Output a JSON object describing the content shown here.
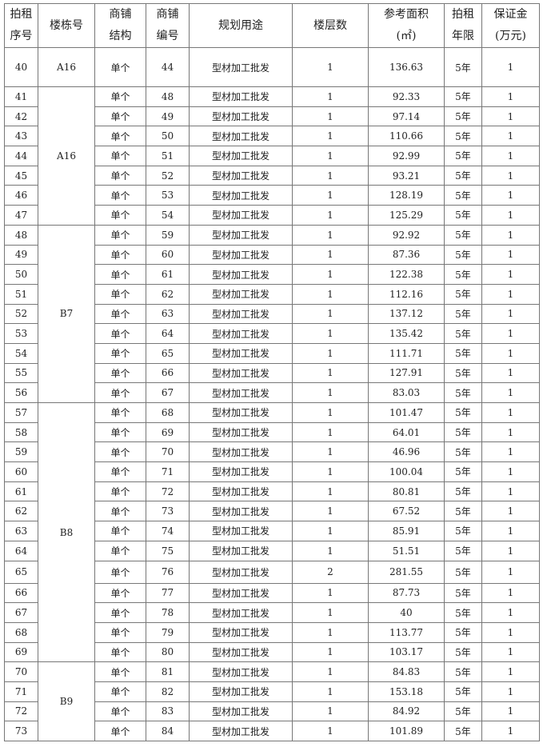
{
  "headers": [
    "拍租\n序号",
    "楼栋号",
    "商铺\n结构",
    "商铺\n编号",
    "规划用途",
    "楼层数",
    "参考面积\n(㎡)",
    "拍租\n年限",
    "保证金\n(万元)"
  ],
  "groups": [
    {
      "building": "A16",
      "rows": [
        [
          "40",
          "单个",
          "44",
          "型材加工批发",
          "1",
          "136.63",
          "5年",
          "1"
        ]
      ]
    },
    {
      "building": "A16",
      "rows": [
        [
          "41",
          "单个",
          "48",
          "型材加工批发",
          "1",
          "92.33",
          "5年",
          "1"
        ],
        [
          "42",
          "单个",
          "49",
          "型材加工批发",
          "1",
          "97.14",
          "5年",
          "1"
        ],
        [
          "43",
          "单个",
          "50",
          "型材加工批发",
          "1",
          "110.66",
          "5年",
          "1"
        ],
        [
          "44",
          "单个",
          "51",
          "型材加工批发",
          "1",
          "92.99",
          "5年",
          "1"
        ],
        [
          "45",
          "单个",
          "52",
          "型材加工批发",
          "1",
          "93.21",
          "5年",
          "1"
        ],
        [
          "46",
          "单个",
          "53",
          "型材加工批发",
          "1",
          "128.19",
          "5年",
          "1"
        ],
        [
          "47",
          "单个",
          "54",
          "型材加工批发",
          "1",
          "125.29",
          "5年",
          "1"
        ]
      ]
    },
    {
      "building": "B7",
      "rows": [
        [
          "48",
          "单个",
          "59",
          "型材加工批发",
          "1",
          "92.92",
          "5年",
          "1"
        ],
        [
          "49",
          "单个",
          "60",
          "型材加工批发",
          "1",
          "87.36",
          "5年",
          "1"
        ],
        [
          "50",
          "单个",
          "61",
          "型材加工批发",
          "1",
          "122.38",
          "5年",
          "1"
        ],
        [
          "51",
          "单个",
          "62",
          "型材加工批发",
          "1",
          "112.16",
          "5年",
          "1"
        ],
        [
          "52",
          "单个",
          "63",
          "型材加工批发",
          "1",
          "137.12",
          "5年",
          "1"
        ],
        [
          "53",
          "单个",
          "64",
          "型材加工批发",
          "1",
          "135.42",
          "5年",
          "1"
        ],
        [
          "54",
          "单个",
          "65",
          "型材加工批发",
          "1",
          "111.71",
          "5年",
          "1"
        ],
        [
          "55",
          "单个",
          "66",
          "型材加工批发",
          "1",
          "127.91",
          "5年",
          "1"
        ],
        [
          "56",
          "单个",
          "67",
          "型材加工批发",
          "1",
          "83.03",
          "5年",
          "1"
        ]
      ]
    },
    {
      "building": "B8",
      "rows": [
        [
          "57",
          "单个",
          "68",
          "型材加工批发",
          "1",
          "101.47",
          "5年",
          "1"
        ],
        [
          "58",
          "单个",
          "69",
          "型材加工批发",
          "1",
          "64.01",
          "5年",
          "1"
        ],
        [
          "59",
          "单个",
          "70",
          "型材加工批发",
          "1",
          "46.96",
          "5年",
          "1"
        ],
        [
          "60",
          "单个",
          "71",
          "型材加工批发",
          "1",
          "100.04",
          "5年",
          "1"
        ],
        [
          "61",
          "单个",
          "72",
          "型材加工批发",
          "1",
          "80.81",
          "5年",
          "1"
        ],
        [
          "62",
          "单个",
          "73",
          "型材加工批发",
          "1",
          "67.52",
          "5年",
          "1"
        ],
        [
          "63",
          "单个",
          "74",
          "型材加工批发",
          "1",
          "85.91",
          "5年",
          "1"
        ],
        [
          "64",
          "单个",
          "75",
          "型材加工批发",
          "1",
          "51.51",
          "5年",
          "1"
        ],
        [
          "65",
          "单个",
          "76",
          "型材加工批发",
          "2",
          "281.55",
          "5年",
          "1"
        ],
        [
          "66",
          "单个",
          "77",
          "型材加工批发",
          "1",
          "87.73",
          "5年",
          "1"
        ],
        [
          "67",
          "单个",
          "78",
          "型材加工批发",
          "1",
          "40",
          "5年",
          "1"
        ],
        [
          "68",
          "单个",
          "79",
          "型材加工批发",
          "1",
          "113.77",
          "5年",
          "1"
        ],
        [
          "69",
          "单个",
          "80",
          "型材加工批发",
          "1",
          "103.17",
          "5年",
          "1"
        ]
      ]
    },
    {
      "building": "B9",
      "rows": [
        [
          "70",
          "单个",
          "81",
          "型材加工批发",
          "1",
          "84.83",
          "5年",
          "1"
        ],
        [
          "71",
          "单个",
          "82",
          "型材加工批发",
          "1",
          "153.18",
          "5年",
          "1"
        ],
        [
          "72",
          "单个",
          "83",
          "型材加工批发",
          "1",
          "84.92",
          "5年",
          "1"
        ],
        [
          "73",
          "单个",
          "84",
          "型材加工批发",
          "1",
          "101.89",
          "5年",
          "1"
        ]
      ]
    }
  ]
}
